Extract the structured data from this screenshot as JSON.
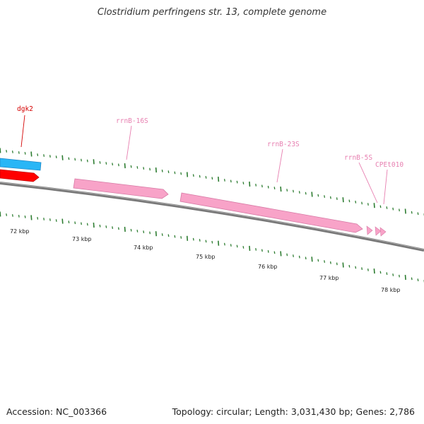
{
  "title": "Clostridium perfringens str. 13, complete genome",
  "footer": {
    "accession_label": "Accession:",
    "accession_value": "NC_003366",
    "topology_text": "Topology: circular; Length: 3,031,430 bp; Genes: 2,786"
  },
  "colors": {
    "backbone": "#888888",
    "tick": "#2e7d32",
    "cds_cyan": "#29b6f6",
    "cds_red": "#ff0000",
    "rrna_pink": "#f8a3c8",
    "label_red": "#d40000",
    "label_pink": "#e77fb0"
  },
  "scale_labels": [
    "72 kbp",
    "73 kbp",
    "74 kbp",
    "75 kbp",
    "76 kbp",
    "77 kbp",
    "78 kbp"
  ],
  "features": [
    {
      "name": "dgk2",
      "type": "CDS",
      "color": "cds_red"
    },
    {
      "name": "",
      "type": "CDS",
      "color": "cds_cyan"
    },
    {
      "name": "rrnB-16S",
      "type": "rRNA",
      "color": "rrna_pink"
    },
    {
      "name": "rrnB-23S",
      "type": "rRNA",
      "color": "rrna_pink"
    },
    {
      "name": "rrnB-5S",
      "type": "rRNA",
      "color": "rrna_pink"
    },
    {
      "name": "CPEt010",
      "type": "tRNA",
      "color": "rrna_pink"
    }
  ]
}
